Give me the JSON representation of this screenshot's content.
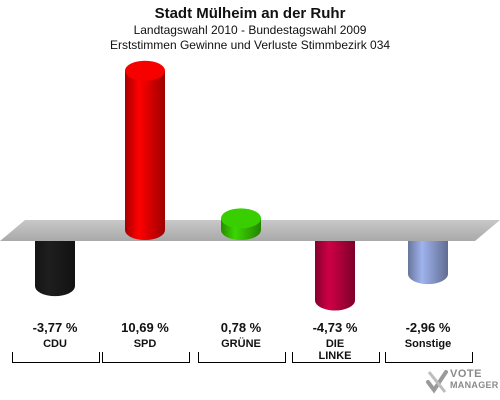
{
  "header": {
    "title": "Stadt Mülheim an der Ruhr",
    "subtitle": "Landtagswahl 2010 - Bundestagswahl 2009",
    "subtitle2": "Erststimmen Gewinne und Verluste Stimmbezirk 034"
  },
  "chart_data": {
    "type": "bar",
    "categories": [
      "CDU",
      "SPD",
      "GRÜNE",
      "DIE LINKE",
      "Sonstige"
    ],
    "values": [
      -3.77,
      10.69,
      0.78,
      -4.73,
      -2.96
    ],
    "value_labels": [
      "-3,77 %",
      "10,69 %",
      "0,78 %",
      "-4,73 %",
      "-2,96 %"
    ],
    "colors": [
      "#1a1a1a",
      "#e00000",
      "#33bb00",
      "#b3003c",
      "#8a9ccf"
    ],
    "ylim": [
      -5,
      12
    ],
    "grid": false,
    "legend": "none"
  },
  "logo": {
    "line1": "VOTE",
    "line2": "MANAGER"
  }
}
